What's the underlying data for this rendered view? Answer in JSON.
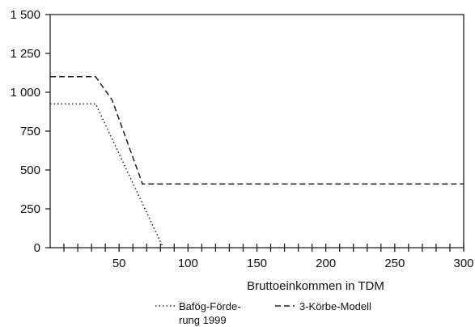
{
  "chart_data": {
    "type": "line",
    "title": "",
    "xlabel": "Bruttoeinkommen in TDM",
    "ylabel": "",
    "xlim": [
      0,
      300
    ],
    "ylim": [
      0,
      1500
    ],
    "x_ticks": [
      50,
      100,
      150,
      200,
      250,
      300
    ],
    "y_ticks": [
      0,
      250,
      500,
      750,
      1000,
      1250,
      1500
    ],
    "x_tick_labels": [
      "50",
      "100",
      "150",
      "200",
      "250",
      "300"
    ],
    "y_tick_labels": [
      "0",
      "250",
      "500",
      "750",
      "1 000",
      "1 250",
      "1 500"
    ],
    "grid": false,
    "legend_position": "bottom",
    "series": [
      {
        "name_line1": "Bafög-Förde-",
        "name_line2": "rung 1999",
        "style": "dotted",
        "x": [
          0,
          33,
          82
        ],
        "y": [
          925,
          925,
          0
        ]
      },
      {
        "name": "3-Körbe-Modell",
        "style": "dashed",
        "x": [
          0,
          33,
          45,
          67,
          300
        ],
        "y": [
          1100,
          1100,
          950,
          410,
          410
        ]
      }
    ]
  }
}
